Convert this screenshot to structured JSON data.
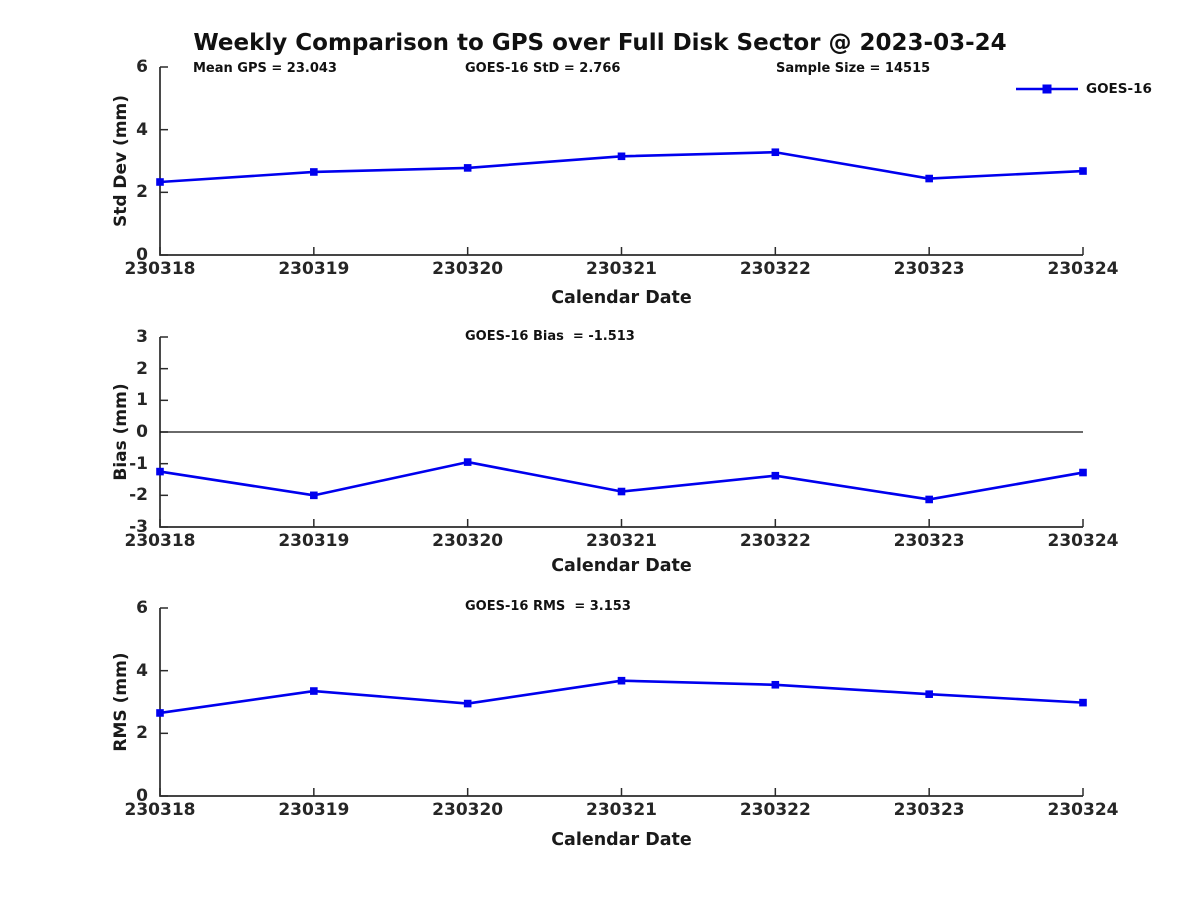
{
  "page_title": "Weekly Comparison to GPS over Full Disk Sector @ 2023-03-24",
  "colors": {
    "series": "#0000EE",
    "axis": "#2b2b2b",
    "zero_line": "#111111",
    "text": "#1a1a1a"
  },
  "legend": {
    "series_label": "GOES-16",
    "position": "top-right"
  },
  "stats": {
    "mean_gps": "23.043",
    "goes16_std": "2.766",
    "sample_size": "14515",
    "goes16_bias": "-1.513",
    "goes16_rms": "3.153"
  },
  "chart_data": [
    {
      "type": "line",
      "annotations": [
        "Mean GPS = 23.043",
        "GOES-16 StD = 2.766",
        "Sample Size = 14515"
      ],
      "ylabel": "Std Dev (mm)",
      "xlabel": "Calendar Date",
      "categories": [
        "230318",
        "230319",
        "230320",
        "230321",
        "230322",
        "230323",
        "230324"
      ],
      "series": [
        {
          "name": "GOES-16",
          "values": [
            2.33,
            2.65,
            2.78,
            3.15,
            3.28,
            2.44,
            2.68
          ]
        }
      ],
      "ylim": [
        0,
        6
      ],
      "yticks": [
        0,
        2,
        4,
        6
      ],
      "grid": false,
      "zero_line": false
    },
    {
      "type": "line",
      "annotations": [
        "GOES-16 Bias  = -1.513"
      ],
      "ylabel": "Bias (mm)",
      "xlabel": "Calendar Date",
      "categories": [
        "230318",
        "230319",
        "230320",
        "230321",
        "230322",
        "230323",
        "230324"
      ],
      "series": [
        {
          "name": "GOES-16",
          "values": [
            -1.25,
            -2.0,
            -0.95,
            -1.88,
            -1.38,
            -2.13,
            -1.28
          ]
        }
      ],
      "ylim": [
        -3,
        3
      ],
      "yticks": [
        -3,
        -2,
        -1,
        0,
        1,
        2,
        3
      ],
      "grid": false,
      "zero_line": true
    },
    {
      "type": "line",
      "annotations": [
        "GOES-16 RMS  = 3.153"
      ],
      "ylabel": "RMS (mm)",
      "xlabel": "Calendar Date",
      "categories": [
        "230318",
        "230319",
        "230320",
        "230321",
        "230322",
        "230323",
        "230324"
      ],
      "series": [
        {
          "name": "GOES-16",
          "values": [
            2.65,
            3.35,
            2.95,
            3.68,
            3.55,
            3.25,
            2.98
          ]
        }
      ],
      "ylim": [
        0,
        6
      ],
      "yticks": [
        0,
        2,
        4,
        6
      ],
      "grid": false,
      "zero_line": false
    }
  ]
}
